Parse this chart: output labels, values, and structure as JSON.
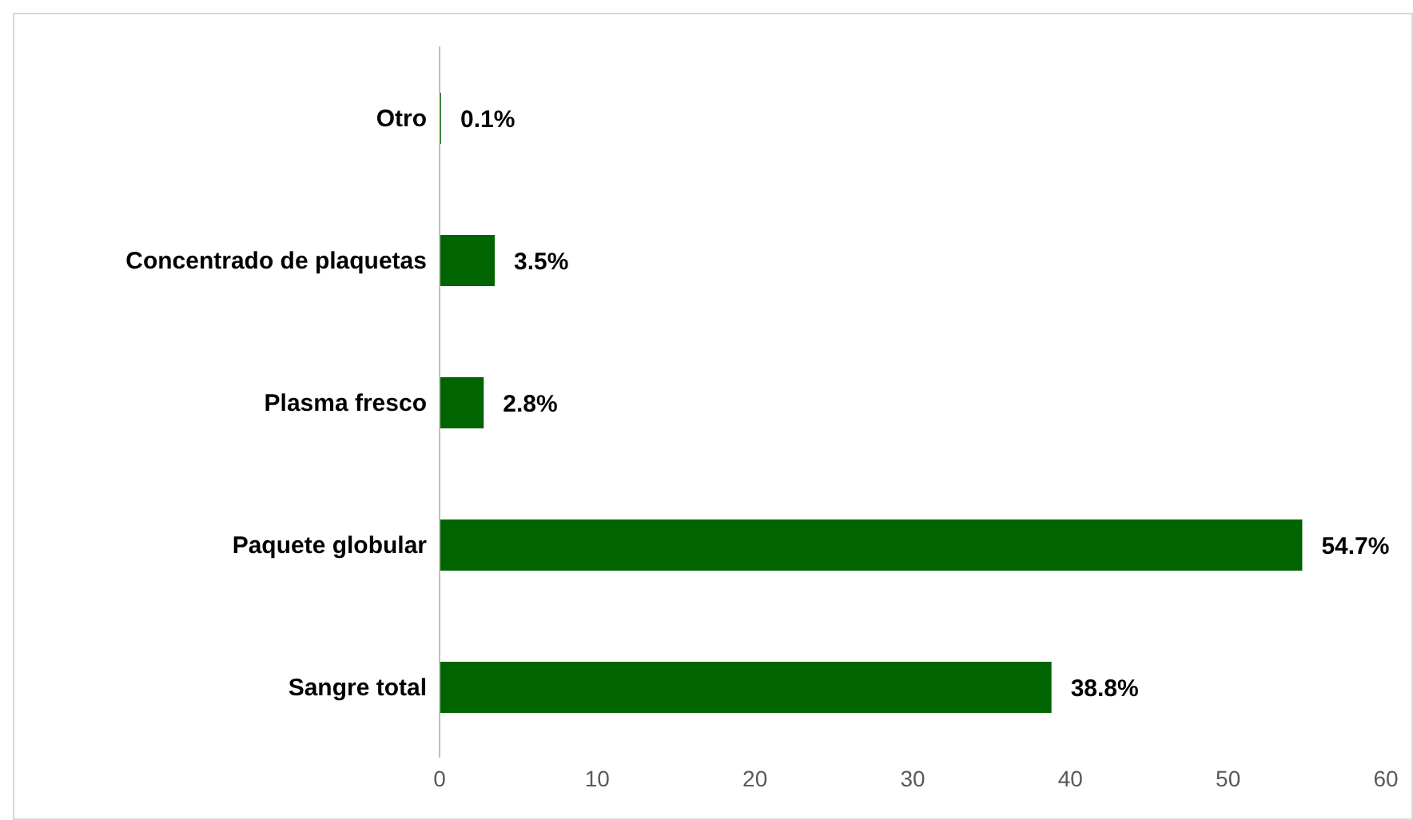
{
  "chart_data": {
    "type": "bar",
    "orientation": "horizontal",
    "categories": [
      "Otro",
      "Concentrado de plaquetas",
      "Plasma fresco",
      "Paquete globular",
      "Sangre total"
    ],
    "values": [
      0.1,
      3.5,
      2.8,
      54.7,
      38.8
    ],
    "value_labels": [
      "0.1%",
      "3.5%",
      "2.8%",
      "54.7%",
      "38.8%"
    ],
    "color": "#006400",
    "xlim": [
      0,
      60
    ],
    "xticks": [
      0,
      10,
      20,
      30,
      40,
      50,
      60
    ],
    "grid": false
  }
}
